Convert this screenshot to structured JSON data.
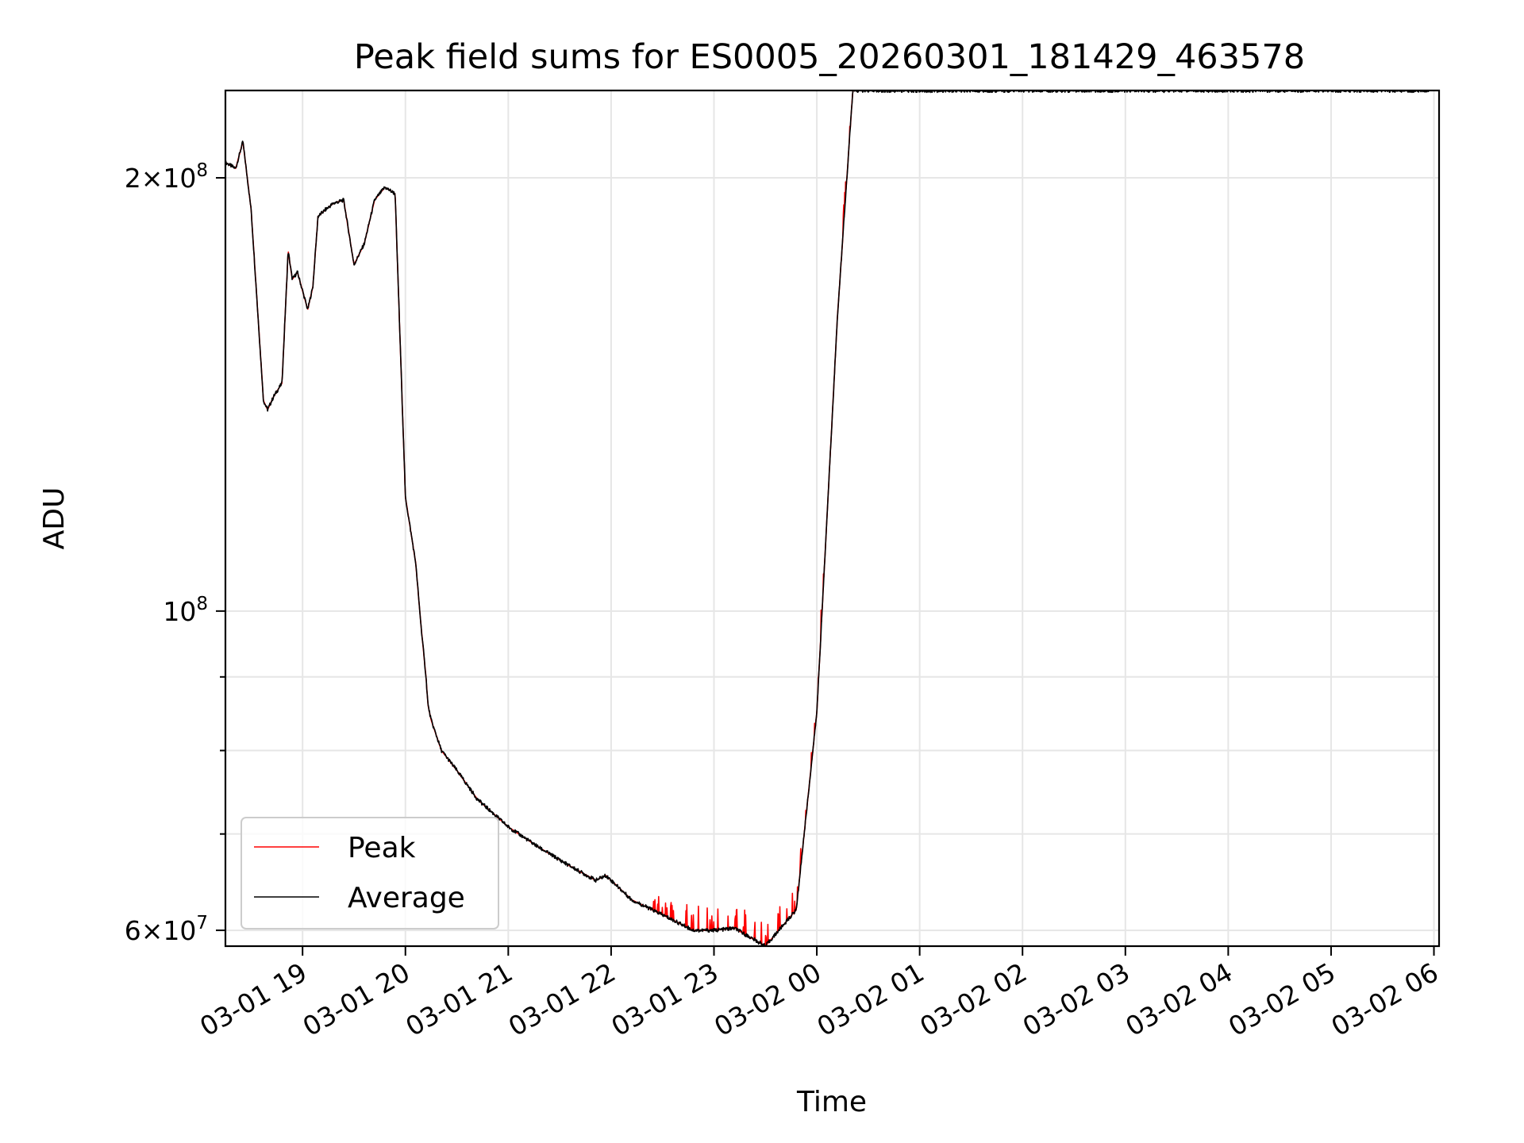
{
  "chart_data": {
    "type": "line",
    "title": "Peak field sums for ES0005_20260301_181429_463578",
    "xlabel": "Time",
    "ylabel": "ADU",
    "x_unit": "hours since 03-01 00:00",
    "x_range": [
      18.25,
      30.05
    ],
    "y_scale": "log",
    "y_range": [
      58500000,
      230000000
    ],
    "grid": true,
    "legend_position": "lower-left",
    "x_ticks": [
      {
        "value": 19,
        "label": "03-01 19"
      },
      {
        "value": 20,
        "label": "03-01 20"
      },
      {
        "value": 21,
        "label": "03-01 21"
      },
      {
        "value": 22,
        "label": "03-01 22"
      },
      {
        "value": 23,
        "label": "03-01 23"
      },
      {
        "value": 24,
        "label": "03-02 00"
      },
      {
        "value": 25,
        "label": "03-02 01"
      },
      {
        "value": 26,
        "label": "03-02 02"
      },
      {
        "value": 27,
        "label": "03-02 03"
      },
      {
        "value": 28,
        "label": "03-02 04"
      },
      {
        "value": 29,
        "label": "03-02 05"
      },
      {
        "value": 30,
        "label": "03-02 06"
      }
    ],
    "y_major_ticks": [
      {
        "value": 60000000,
        "mantissa": "6",
        "exponent": "7"
      },
      {
        "value": 100000000,
        "mantissa": "",
        "exponent": "8"
      },
      {
        "value": 200000000,
        "mantissa": "2",
        "exponent": "8"
      }
    ],
    "y_minor_ticks": [
      70000000,
      80000000,
      90000000
    ],
    "series": [
      {
        "name": "Peak",
        "color": "#ff0000",
        "x": [
          18.25,
          18.35,
          18.42,
          18.5,
          18.58,
          18.62,
          18.66,
          18.72,
          18.8,
          18.86,
          18.9,
          18.95,
          19.05,
          19.1,
          19.15,
          19.22,
          19.3,
          19.4,
          19.5,
          19.6,
          19.7,
          19.8,
          19.9,
          20.0,
          20.1,
          20.15,
          20.2,
          20.22,
          20.25,
          20.35,
          20.5,
          20.7,
          21.0,
          21.3,
          21.6,
          21.85,
          21.95,
          22.05,
          22.2,
          22.4,
          22.6,
          22.8,
          23.0,
          23.2,
          23.5,
          23.8,
          24.0,
          24.2,
          24.35,
          24.5,
          24.6,
          24.75,
          25.0,
          25.5,
          26.0,
          26.5,
          27.0,
          27.5,
          28.0,
          28.4,
          28.7,
          29.0,
          29.15,
          29.25,
          29.35,
          29.45,
          29.55,
          29.65,
          29.75,
          29.85,
          29.95
        ],
        "values": [
          205000000,
          203000000,
          212000000,
          190000000,
          155000000,
          140000000,
          138000000,
          141000000,
          144000000,
          178000000,
          170000000,
          172000000,
          162000000,
          168000000,
          188000000,
          190000000,
          192000000,
          193000000,
          174000000,
          180000000,
          193000000,
          197000000,
          195000000,
          120000000,
          108000000,
          98000000,
          90000000,
          86000000,
          84000000,
          80000000,
          77500000,
          74000000,
          70800000,
          68500000,
          66500000,
          65000000,
          65500000,
          64500000,
          63000000,
          62000000,
          61000000,
          60000000,
          60000000,
          60200000,
          58500000,
          62000000,
          85000000,
          160000000,
          230000000,
          230000000,
          230000000,
          230000000,
          230000000,
          230000000,
          230000000,
          230000000,
          230000000,
          230000000,
          230000000,
          230000000,
          230000000,
          230000000,
          230000000,
          230000000,
          230000000,
          230000000,
          230000000,
          230000000,
          230000000,
          230000000,
          230000000
        ]
      },
      {
        "name": "Average",
        "color": "#000000"
      }
    ]
  }
}
